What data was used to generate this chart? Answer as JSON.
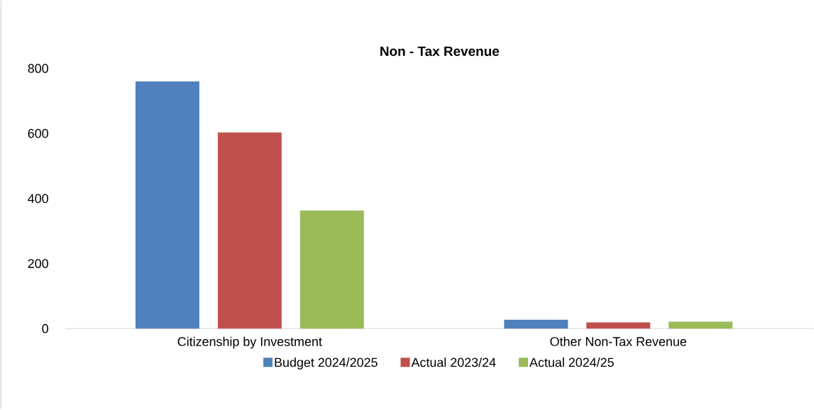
{
  "chart_data": {
    "type": "bar",
    "title": "Non - Tax Revenue",
    "categories": [
      "Citizenship by Investment",
      "Other Non-Tax Revenue"
    ],
    "series": [
      {
        "name": "Budget 2024/2025",
        "color": "#4f81bd",
        "values": [
          760,
          27
        ]
      },
      {
        "name": "Actual  2023/24",
        "color": "#c0504d",
        "values": [
          603,
          19
        ]
      },
      {
        "name": "Actual 2024/25",
        "color": "#9bbb59",
        "values": [
          363,
          21
        ]
      }
    ],
    "ylim": [
      0,
      800
    ],
    "yticks": [
      0,
      200,
      400,
      600,
      800
    ],
    "legend": "bottom"
  }
}
